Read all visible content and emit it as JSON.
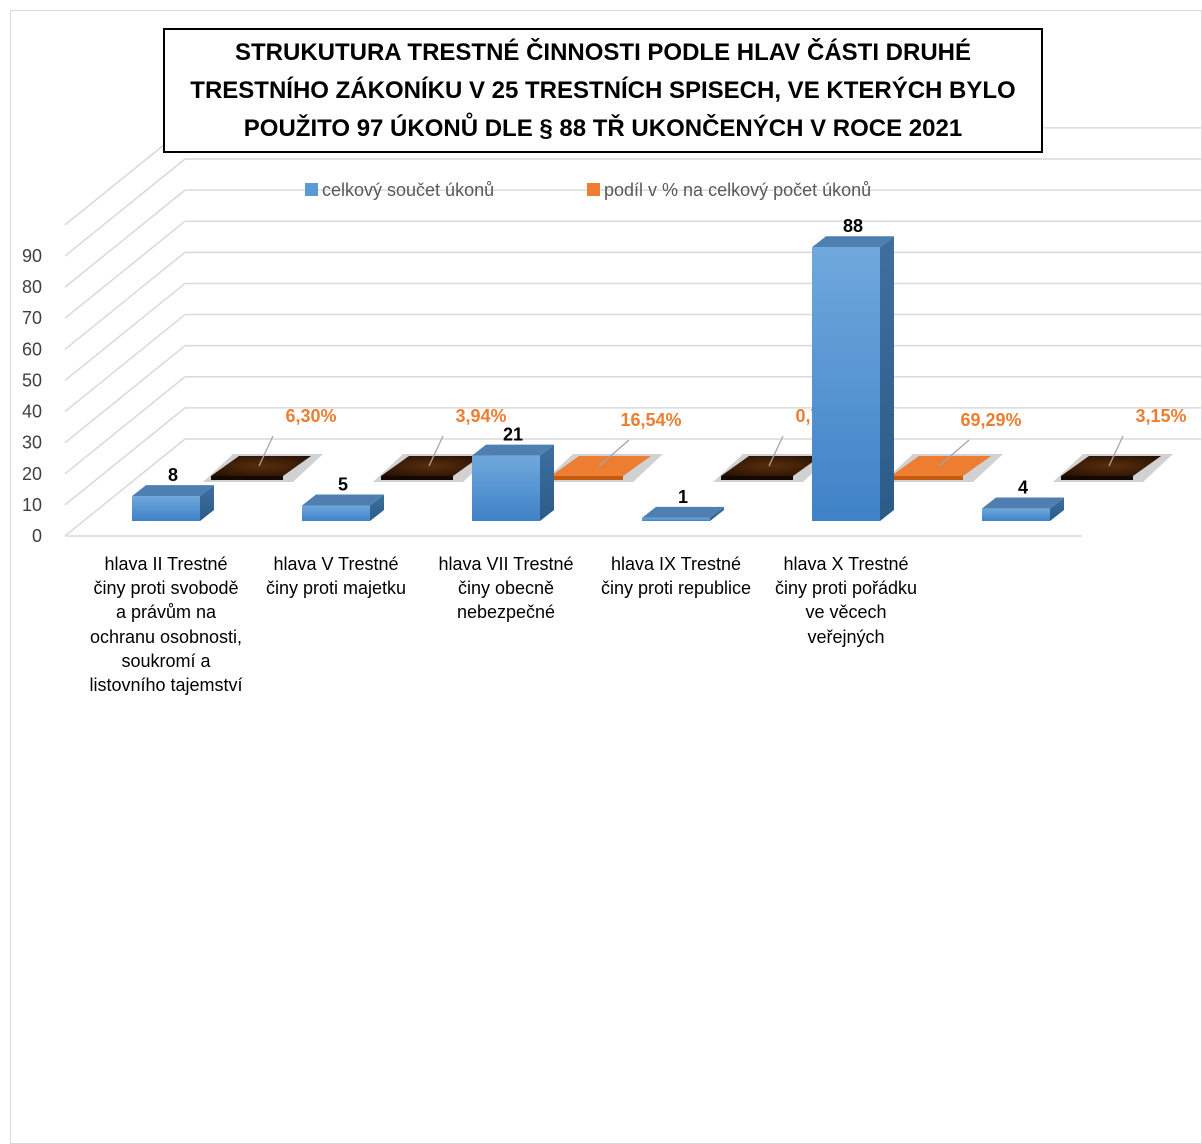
{
  "chart_data": {
    "type": "bar",
    "title": "STRUKUTURA TRESTNÉ ČINNOSTI PODLE HLAV ČÁSTI DRUHÉ TRESTNÍHO ZÁKONÍKU V 25 TRESTNÍCH SPISECH, VE KTERÝCH BYLO POUŽITO 97 ÚKONŮ DLE § 88 TŘ UKONČENÝCH V ROCE 2021",
    "categories": [
      "hlava II Trestné činy proti svobodě a právům na ochranu osobnosti, soukromí a listovního tajemství",
      "hlava V Trestné činy proti majetku",
      "hlava VII Trestné činy obecně nebezpečné",
      "hlava IX Trestné činy proti republice",
      "hlava X Trestné činy proti pořádku ve věcech veřejných",
      ""
    ],
    "series": [
      {
        "name": "celkový součet úkonů",
        "values": [
          8,
          5,
          21,
          1,
          88,
          4
        ],
        "labels": [
          "8",
          "5",
          "21",
          "1",
          "88",
          "4"
        ],
        "color": "#5b9bd5"
      },
      {
        "name": "podíl v % na celkový počet úkonů",
        "values": [
          6.3,
          3.94,
          16.54,
          0.79,
          69.29,
          3.15
        ],
        "labels": [
          "6,30%",
          "3,94%",
          "16,54%",
          "0,79%",
          "69,29%",
          "3,15%"
        ],
        "color": "#ed7d31"
      }
    ],
    "yticks": [
      "0",
      "10",
      "20",
      "30",
      "40",
      "50",
      "60",
      "70",
      "80",
      "90"
    ],
    "ylim": [
      0,
      90
    ],
    "grid": true,
    "legend": "top",
    "chart_style": "3d-column"
  }
}
